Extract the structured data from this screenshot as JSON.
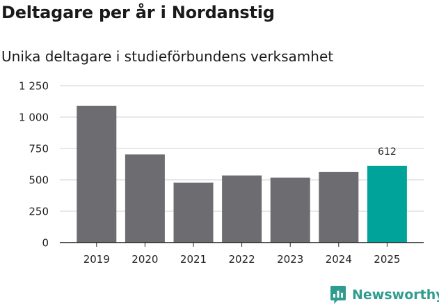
{
  "chart_data": {
    "type": "bar",
    "title": "Deltagare per år i Nordanstig",
    "subtitle": "Unika deltagare i studieförbundens verksamhet",
    "xlabel": "",
    "ylabel": "",
    "categories": [
      "2019",
      "2020",
      "2021",
      "2022",
      "2023",
      "2024",
      "2025"
    ],
    "values": [
      1090,
      703,
      478,
      535,
      518,
      562,
      612
    ],
    "ylim": [
      0,
      1250
    ],
    "yticks": [
      0,
      250,
      500,
      750,
      1000,
      1250
    ],
    "ytick_labels": [
      "0",
      "250",
      "500",
      "750",
      "1 000",
      "1 250"
    ],
    "grid": true,
    "highlight_index": 6,
    "data_labels": {
      "6": "612"
    }
  },
  "colors": {
    "bar": "#6d6c71",
    "highlight": "#00a39a",
    "grid": "#d9d9d9",
    "axis": "#222222",
    "brand": "#2f9c8f"
  },
  "brand": {
    "name": "Newsworthy",
    "icon": "newsworthy-logo-icon"
  }
}
